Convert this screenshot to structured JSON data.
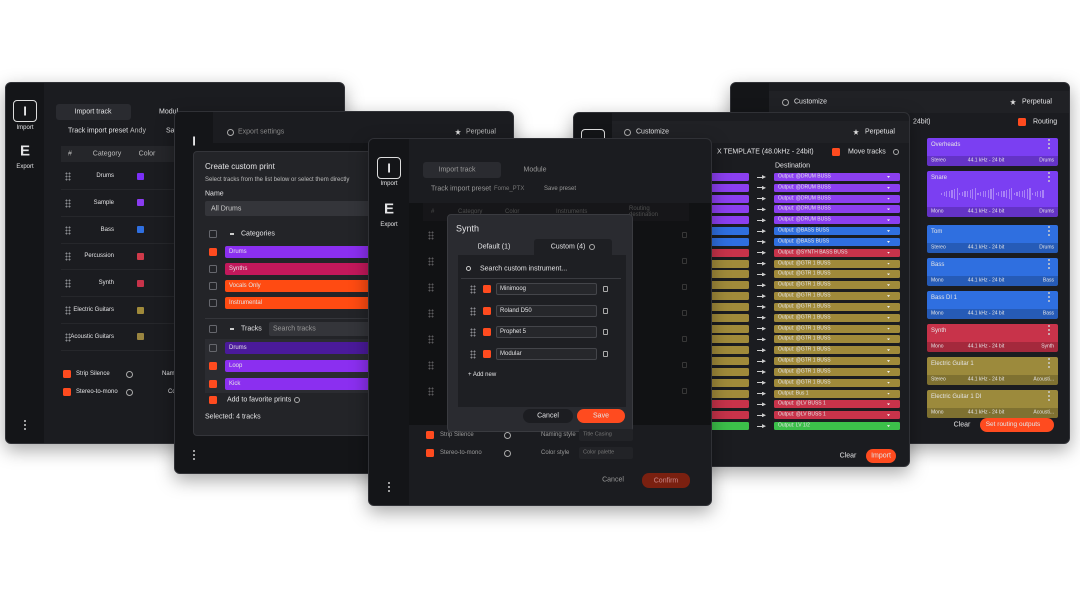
{
  "window_import": {
    "icon_letters": [
      "I",
      "E"
    ],
    "nav": [
      "Import",
      "Export"
    ],
    "tabs": [
      "Import track",
      "Modul"
    ],
    "preset_label": "Track import preset",
    "preset_value": "Andy",
    "save": "Sav",
    "headers": [
      "#",
      "Category",
      "Color"
    ],
    "rows": [
      {
        "name": "Drums",
        "color": "#7b2ff7"
      },
      {
        "name": "Sample",
        "color": "#8a3cf0"
      },
      {
        "name": "Bass",
        "color": "#2f6fe0"
      },
      {
        "name": "Percussion",
        "color": "#d03a4a"
      },
      {
        "name": "Synth",
        "color": "#c8334a"
      },
      {
        "name": "Electric Guitars",
        "color": "#a08a3a"
      },
      {
        "name": "Acoustic Guitars",
        "color": "#9a8540"
      }
    ],
    "options": [
      "Strip Silence",
      "Stereo-to-mono"
    ],
    "option_fields": [
      "Nam",
      "Co"
    ]
  },
  "window_export": {
    "icon_letter": "I",
    "title": "Export settings",
    "badge": "Perpetual",
    "dialog": {
      "title": "Create custom print",
      "subtitle": "Select tracks from the list below or select them directly",
      "name_label": "Name",
      "name_value": "All Drums",
      "categories_label": "Categories",
      "categories": [
        {
          "name": "Drums",
          "color": "#8b2ff0",
          "checked": true
        },
        {
          "name": "Synths",
          "color": "#c2185b",
          "checked": false
        },
        {
          "name": "Vocals Only",
          "color": "#ff4b12",
          "checked": false
        },
        {
          "name": "Instrumental",
          "color": "#ff4b12",
          "checked": false
        }
      ],
      "tracks_label": "Tracks",
      "search_placeholder": "Search tracks",
      "tracks": [
        {
          "name": "Drums",
          "color": "#4a1a9a",
          "checked": false
        },
        {
          "name": "Loop",
          "color": "#8b2ff0",
          "checked": true
        },
        {
          "name": "Kick",
          "color": "#8b2ff0",
          "checked": true
        }
      ],
      "favorite": "Add to favorite prints",
      "selected": "Selected: 4 tracks"
    }
  },
  "window_main": {
    "icon_letters": [
      "I",
      "E"
    ],
    "nav": [
      "Import",
      "Export"
    ],
    "tabs": [
      "Import track",
      "Module"
    ],
    "preset_label": "Track import preset",
    "preset_value": "Fome_PTX",
    "save": "Save preset",
    "headers": [
      "#",
      "Category",
      "Color",
      "Instruments",
      "Routing destination"
    ],
    "options": [
      {
        "label": "Strip Silence",
        "field": "Naming style",
        "value": "Title Casing"
      },
      {
        "label": "Stereo-to-mono",
        "field": "Color style",
        "value": "Color palette"
      }
    ],
    "cancel": "Cancel",
    "confirm": "Confirm",
    "dialog": {
      "title": "Synth",
      "tabs": [
        "Default (1)",
        "Custom (4)"
      ],
      "search": "Search custom instrument...",
      "items": [
        "Minimoog",
        "Roland D50",
        "Prophet 5",
        "Modular"
      ],
      "add": "+ Add new",
      "cancel": "Cancel",
      "save": "Save"
    }
  },
  "window_routing": {
    "title": "Customize",
    "badge": "Perpetual",
    "template": "X TEMPLATE (48.0kHz - 24bit)",
    "move": "Move tracks",
    "destination_label": "Destination",
    "outputs": [
      {
        "label": "Output: @DRUM BUSS",
        "color": "#8b3ff0"
      },
      {
        "label": "Output: @DRUM BUSS",
        "color": "#8b3ff0"
      },
      {
        "label": "Output: @DRUM BUSS",
        "color": "#8b3ff0"
      },
      {
        "label": "Output: @DRUM BUSS",
        "color": "#8b3ff0"
      },
      {
        "label": "Output: @DRUM BUSS",
        "color": "#8b3ff0"
      },
      {
        "label": "Output: @BASS BUSS",
        "color": "#2f6fe0"
      },
      {
        "label": "Output: @BASS BUSS",
        "color": "#2f6fe0"
      },
      {
        "label": "Output: @SYNTH BASS BUSS",
        "color": "#c8334a"
      },
      {
        "label": "Output: @GTR 1 BUSS",
        "color": "#a08a3a"
      },
      {
        "label": "Output: @GTR 1 BUSS",
        "color": "#a08a3a"
      },
      {
        "label": "Output: @GTR 1 BUSS",
        "color": "#a08a3a"
      },
      {
        "label": "Output: @GTR 1 BUSS",
        "color": "#a08a3a"
      },
      {
        "label": "Output: @GTR 1 BUSS",
        "color": "#a08a3a"
      },
      {
        "label": "Output: @GTR 1 BUSS",
        "color": "#a08a3a"
      },
      {
        "label": "Output: @GTR 1 BUSS",
        "color": "#a08a3a"
      },
      {
        "label": "Output: @GTR 1 BUSS",
        "color": "#a08a3a"
      },
      {
        "label": "Output: @GTR 1 BUSS",
        "color": "#a08a3a"
      },
      {
        "label": "Output: @GTR 1 BUSS",
        "color": "#a08a3a"
      },
      {
        "label": "Output: @GTR 1 BUSS",
        "color": "#a08a3a"
      },
      {
        "label": "Output: @GTR 1 BUSS",
        "color": "#a08a3a"
      },
      {
        "label": "Output: Bus 1",
        "color": "#a08a3a"
      },
      {
        "label": "Output: @LV BUSS 1",
        "color": "#c8334a"
      },
      {
        "label": "Output: @LV BUSS 1",
        "color": "#c8334a"
      },
      {
        "label": "Output: LV 1/2",
        "color": "#3cc04a"
      }
    ],
    "clear": "Clear",
    "import": "Import"
  },
  "window_tracks": {
    "title": "Customize",
    "badge": "Perpetual",
    "format": "24bit)",
    "routing": "Routing",
    "cards": [
      {
        "name": "Overheads",
        "channels": "Stereo",
        "format": "44.1 kHz - 24 bit",
        "group": "Drums",
        "color": "#7b3ff2"
      },
      {
        "name": "Snare",
        "channels": "Mono",
        "format": "44.1 kHz - 24 bit",
        "group": "Drums",
        "color": "#7b3ff2"
      },
      {
        "name": "Tom",
        "channels": "Stereo",
        "format": "44.1 kHz - 24 bit",
        "group": "Drums",
        "color": "#2f6fe0"
      },
      {
        "name": "Bass",
        "channels": "Mono",
        "format": "44.1 kHz - 24 bit",
        "group": "Bass",
        "color": "#2f6fe0"
      },
      {
        "name": "Bass DI 1",
        "channels": "Mono",
        "format": "44.1 kHz - 24 bit",
        "group": "Bass",
        "color": "#2f6fe0"
      },
      {
        "name": "Synth",
        "channels": "Mono",
        "format": "44.1 kHz - 24 bit",
        "group": "Synth",
        "color": "#c8334a"
      },
      {
        "name": "Electric Guitar 1",
        "channels": "Stereo",
        "format": "44.1 kHz - 24 bit",
        "group": "Acousti...",
        "color": "#9c8a3c"
      },
      {
        "name": "Electric Guitar 1 DI",
        "channels": "Mono",
        "format": "44.1 kHz - 24 bit",
        "group": "Acousti...",
        "color": "#9c8a3c"
      }
    ],
    "clear": "Clear",
    "apply": "Set routing outputs"
  }
}
